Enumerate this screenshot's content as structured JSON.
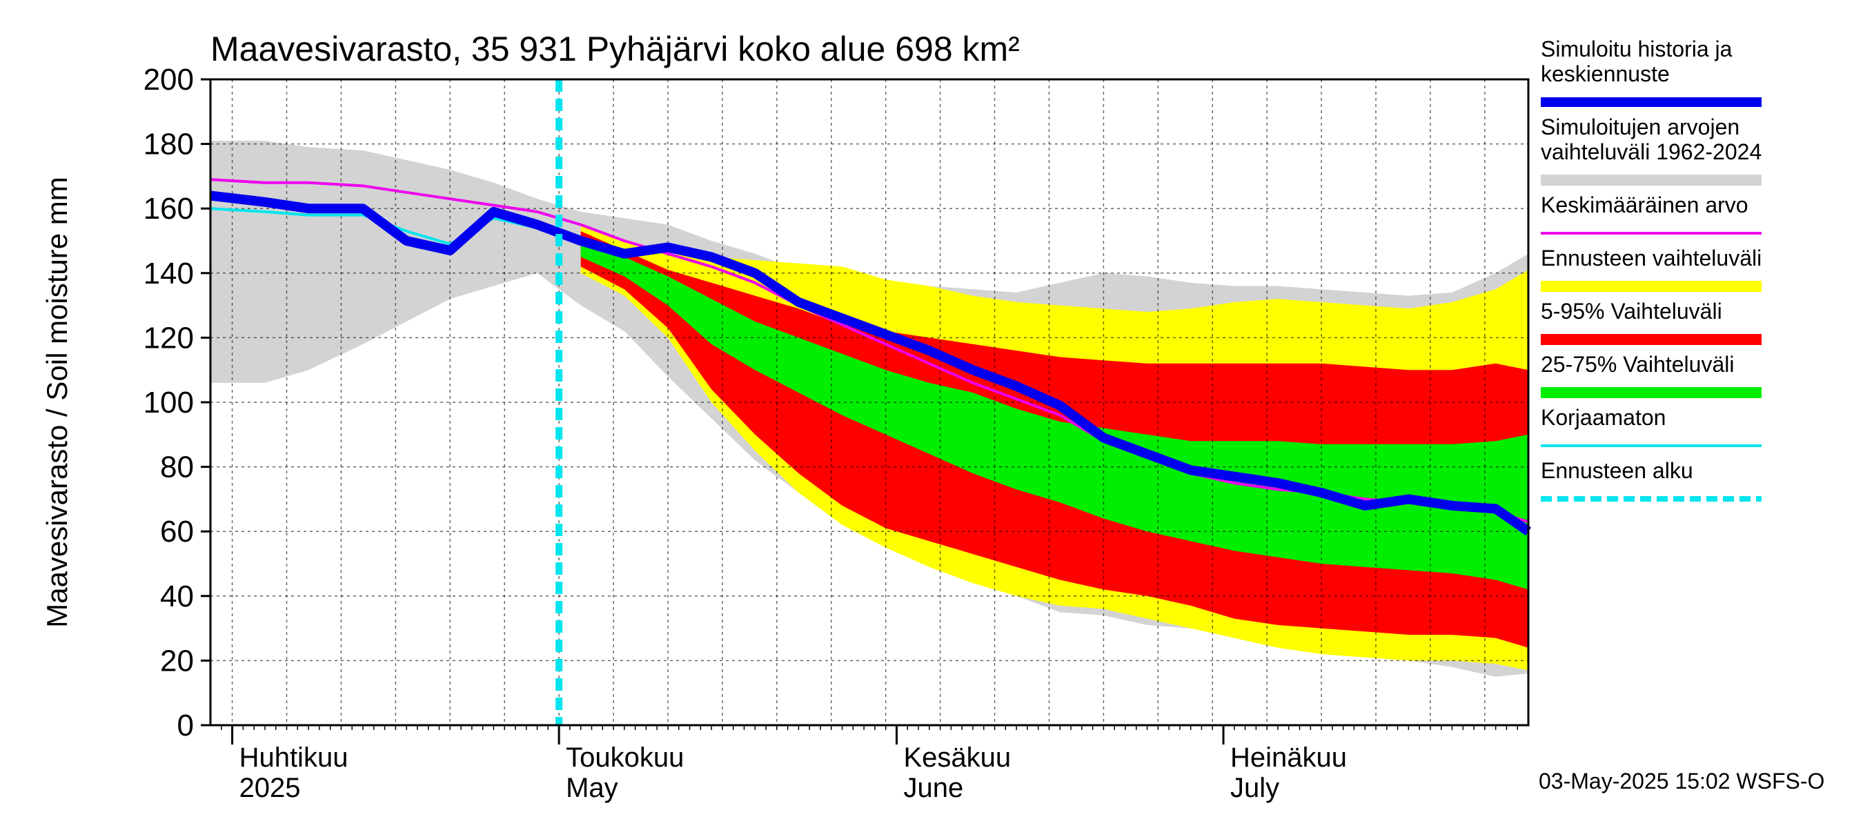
{
  "chart_data": {
    "type": "area",
    "title": "Maavesivarasto, 35 931 Pyhäjärvi koko alue 698 km²",
    "ylabel": "Maavesivarasto / Soil moisture   mm",
    "xlabel": "",
    "ylim": [
      0,
      200
    ],
    "yticks": [
      0,
      20,
      40,
      60,
      80,
      100,
      120,
      140,
      160,
      180,
      200
    ],
    "xlim_days": [
      -2,
      119
    ],
    "months": [
      {
        "name": "Huhtikuu",
        "sub": "2025",
        "day": 0
      },
      {
        "name": "Toukokuu",
        "sub": "May",
        "day": 30
      },
      {
        "name": "Kesäkuu",
        "sub": "June",
        "day": 61
      },
      {
        "name": "Heinäkuu",
        "sub": "July",
        "day": 91
      }
    ],
    "forecast_start_day": 30,
    "x": [
      -2,
      3,
      7,
      12,
      16,
      20,
      24,
      28,
      32,
      36,
      40,
      44,
      48,
      52,
      56,
      60,
      64,
      68,
      72,
      76,
      80,
      84,
      88,
      92,
      96,
      100,
      104,
      108,
      112,
      116,
      119
    ],
    "series": [
      {
        "name": "range_hi",
        "values": [
          181,
          181,
          179,
          178,
          175,
          172,
          168,
          163,
          159,
          157,
          155,
          150,
          146,
          141,
          138,
          137,
          136,
          135,
          134,
          137,
          140,
          139,
          137,
          136,
          136,
          135,
          134,
          133,
          134,
          140,
          146
        ]
      },
      {
        "name": "range_lo",
        "values": [
          106,
          106,
          110,
          118,
          125,
          132,
          136,
          140,
          130,
          122,
          108,
          95,
          82,
          72,
          65,
          58,
          52,
          46,
          40,
          35,
          34,
          31,
          30,
          28,
          25,
          23,
          22,
          20,
          18,
          15,
          16
        ]
      },
      {
        "name": "ens_hi",
        "values": [
          null,
          null,
          null,
          null,
          null,
          null,
          null,
          null,
          155,
          150,
          146,
          145,
          144,
          143,
          142,
          138,
          136,
          133,
          131,
          130,
          129,
          128,
          129,
          131,
          132,
          131,
          130,
          129,
          131,
          135,
          141
        ]
      },
      {
        "name": "ens_lo",
        "values": [
          null,
          null,
          null,
          null,
          null,
          null,
          null,
          null,
          140,
          133,
          120,
          100,
          85,
          72,
          62,
          55,
          49,
          44,
          40,
          37,
          36,
          33,
          30,
          27,
          24,
          22,
          21,
          20,
          20,
          19,
          17
        ]
      },
      {
        "name": "p95",
        "values": [
          null,
          null,
          null,
          null,
          null,
          null,
          null,
          null,
          153,
          147,
          141,
          137,
          133,
          129,
          124,
          122,
          120,
          118,
          116,
          114,
          113,
          112,
          112,
          112,
          112,
          112,
          111,
          110,
          110,
          112,
          110
        ]
      },
      {
        "name": "p05",
        "values": [
          null,
          null,
          null,
          null,
          null,
          null,
          null,
          null,
          142,
          135,
          123,
          104,
          90,
          78,
          68,
          61,
          57,
          53,
          49,
          45,
          42,
          40,
          37,
          33,
          31,
          30,
          29,
          28,
          28,
          27,
          24
        ]
      },
      {
        "name": "p75",
        "values": [
          null,
          null,
          null,
          null,
          null,
          null,
          null,
          null,
          151,
          145,
          139,
          132,
          125,
          120,
          115,
          110,
          106,
          103,
          98,
          94,
          92,
          90,
          88,
          88,
          88,
          87,
          87,
          87,
          87,
          88,
          90
        ]
      },
      {
        "name": "p25",
        "values": [
          null,
          null,
          null,
          null,
          null,
          null,
          null,
          null,
          145,
          139,
          130,
          118,
          110,
          103,
          96,
          90,
          84,
          78,
          73,
          69,
          64,
          60,
          57,
          54,
          52,
          50,
          49,
          48,
          47,
          45,
          42
        ]
      },
      {
        "name": "Simuloitu historia ja keskiennuste",
        "color": "#0000ee",
        "values": [
          164,
          162,
          160,
          160,
          150,
          147,
          159,
          155,
          150,
          146,
          148,
          145,
          140,
          131,
          126,
          121,
          116,
          110,
          105,
          99,
          89,
          84,
          79,
          77,
          75,
          72,
          68,
          70,
          68,
          67,
          60
        ]
      },
      {
        "name": "Keskimääräinen arvo",
        "color": "#ee00ee",
        "values": [
          169,
          168,
          168,
          167,
          165,
          163,
          161,
          159,
          155,
          150,
          146,
          142,
          137,
          130,
          124,
          118,
          112,
          106,
          101,
          96,
          88,
          83,
          78,
          75,
          73,
          72,
          70,
          69,
          68,
          66,
          63
        ]
      },
      {
        "name": "Korjaamaton",
        "color": "#00e5ee",
        "values": [
          160,
          159,
          158,
          158,
          153,
          149,
          157,
          154,
          151,
          null,
          null,
          null,
          null,
          null,
          null,
          null,
          null,
          null,
          null,
          null,
          null,
          null,
          null,
          null,
          null,
          null,
          null,
          null,
          null,
          null,
          null
        ]
      }
    ],
    "legend": [
      {
        "label": "Simuloitu historia ja keskiennuste",
        "color": "#0000ee",
        "style": "thick"
      },
      {
        "label": "Simuloitujen arvojen vaihteluväli 1962-2024",
        "color": "#d3d3d3",
        "style": "band"
      },
      {
        "label": "Keskimääräinen arvo",
        "color": "#ee00ee",
        "style": "line"
      },
      {
        "label": "Ennusteen vaihteluväli",
        "color": "#ffff00",
        "style": "band"
      },
      {
        "label": "5-95% Vaihteluväli",
        "color": "#ff0000",
        "style": "band"
      },
      {
        "label": "25-75% Vaihteluväli",
        "color": "#00ee00",
        "style": "band"
      },
      {
        "label": "Korjaamaton",
        "color": "#00e5ee",
        "style": "line"
      },
      {
        "label": "Ennusteen alku",
        "color": "#00e5ee",
        "style": "dashed"
      }
    ],
    "timestamp": "03-May-2025 15:02 WSFS-O"
  }
}
